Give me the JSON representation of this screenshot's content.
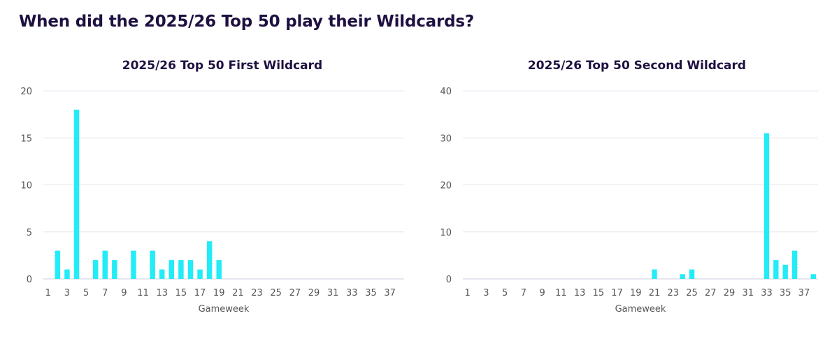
{
  "page": {
    "title": "When did the 2025/26 Top 50 play their Wildcards?"
  },
  "colors": {
    "bar": "#22ecf8",
    "grid": "#e4e6f1",
    "title": "#1e1040",
    "tick": "#555555"
  },
  "chart_data": [
    {
      "type": "bar",
      "title": "2025/26 Top 50 First Wildcard",
      "xlabel": "Gameweek",
      "ylabel": "",
      "ylim": [
        0,
        20
      ],
      "yticks": [
        0,
        5,
        10,
        15,
        20
      ],
      "xtick_labels": [
        "1",
        "3",
        "5",
        "7",
        "9",
        "11",
        "13",
        "15",
        "17",
        "19",
        "21",
        "23",
        "25",
        "27",
        "29",
        "31",
        "33",
        "35",
        "37"
      ],
      "categories": [
        1,
        2,
        3,
        4,
        5,
        6,
        7,
        8,
        9,
        10,
        11,
        12,
        13,
        14,
        15,
        16,
        17,
        18,
        19,
        20,
        21,
        22,
        23,
        24,
        25,
        26,
        27,
        28,
        29,
        30,
        31,
        32,
        33,
        34,
        35,
        36,
        37,
        38
      ],
      "values": [
        0,
        3,
        1,
        18,
        0,
        2,
        3,
        2,
        0,
        3,
        0,
        3,
        1,
        2,
        2,
        2,
        1,
        4,
        2,
        0,
        0,
        0,
        0,
        0,
        0,
        0,
        0,
        0,
        0,
        0,
        0,
        0,
        0,
        0,
        0,
        0,
        0,
        0
      ],
      "grid": true
    },
    {
      "type": "bar",
      "title": "2025/26 Top 50 Second Wildcard",
      "xlabel": "Gameweek",
      "ylabel": "",
      "ylim": [
        0,
        40
      ],
      "yticks": [
        0,
        10,
        20,
        30,
        40
      ],
      "xtick_labels": [
        "1",
        "3",
        "5",
        "7",
        "9",
        "11",
        "13",
        "15",
        "17",
        "19",
        "21",
        "23",
        "25",
        "27",
        "29",
        "31",
        "33",
        "35",
        "37"
      ],
      "categories": [
        1,
        2,
        3,
        4,
        5,
        6,
        7,
        8,
        9,
        10,
        11,
        12,
        13,
        14,
        15,
        16,
        17,
        18,
        19,
        20,
        21,
        22,
        23,
        24,
        25,
        26,
        27,
        28,
        29,
        30,
        31,
        32,
        33,
        34,
        35,
        36,
        37,
        38
      ],
      "values": [
        0,
        0,
        0,
        0,
        0,
        0,
        0,
        0,
        0,
        0,
        0,
        0,
        0,
        0,
        0,
        0,
        0,
        0,
        0,
        0,
        2,
        0,
        0,
        1,
        2,
        0,
        0,
        0,
        0,
        0,
        0,
        0,
        31,
        4,
        3,
        6,
        0,
        1
      ],
      "grid": true
    }
  ]
}
